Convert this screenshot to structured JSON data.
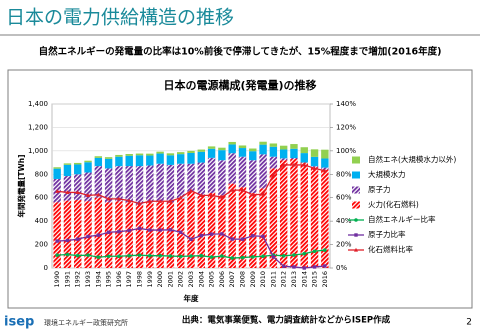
{
  "header": {
    "title": "日本の電力供給構造の推移",
    "subtitle": "自然エネルギーの発電量の比率は10%前後で停滞してきたが、15%程度まで増加(2016年度)"
  },
  "chart_data": {
    "type": "bar",
    "title": "日本の電源構成(発電量)の推移",
    "stacked": true,
    "x_label": "年度",
    "y_label": "年間発電量[TWh]",
    "categories": [
      "1990",
      "1991",
      "1992",
      "1993",
      "1994",
      "1995",
      "1996",
      "1997",
      "1998",
      "1999",
      "2000",
      "2001",
      "2002",
      "2003",
      "2004",
      "2005",
      "2006",
      "2007",
      "2008",
      "2009",
      "2010",
      "2011",
      "2012",
      "2013",
      "2014",
      "2015",
      "2016"
    ],
    "ylim": [
      0,
      1400
    ],
    "yticks": [
      0,
      200,
      400,
      600,
      800,
      {
        "value": 1000,
        "label": "1,000"
      },
      {
        "value": 1200,
        "label": "1,200"
      },
      {
        "value": 1400,
        "label": "1,400"
      }
    ],
    "y2lim": [
      0,
      140
    ],
    "y2ticks": [
      {
        "value": 0,
        "label": "0%"
      },
      {
        "value": 20,
        "label": "20%"
      },
      {
        "value": 40,
        "label": "40%"
      },
      {
        "value": 60,
        "label": "60%"
      },
      {
        "value": 80,
        "label": "80%"
      },
      {
        "value": 100,
        "label": "100%"
      },
      {
        "value": 120,
        "label": "120%"
      },
      {
        "value": 140,
        "label": "140%"
      }
    ],
    "grid": true,
    "legend": "right",
    "series": [
      {
        "name": "自然エネ(大規模水力以外)",
        "type": "bar",
        "fill_style": "solid",
        "color": "#92d050",
        "values": [
          12,
          12,
          13,
          13,
          14,
          14,
          15,
          15,
          15,
          16,
          16,
          17,
          17,
          18,
          19,
          20,
          21,
          21,
          22,
          23,
          25,
          28,
          32,
          40,
          50,
          64,
          75
        ]
      },
      {
        "name": "大規模水力",
        "type": "bar",
        "fill_style": "solid",
        "color": "#00b0f0",
        "values": [
          88,
          96,
          84,
          88,
          70,
          82,
          80,
          88,
          92,
          85,
          87,
          82,
          82,
          92,
          92,
          78,
          86,
          75,
          74,
          77,
          83,
          85,
          76,
          79,
          81,
          80,
          78
        ]
      },
      {
        "name": "原子力",
        "type": "bar",
        "fill_style": "hatch",
        "color": "#7030a0",
        "values": [
          200,
          210,
          220,
          245,
          270,
          290,
          300,
          310,
          330,
          315,
          320,
          320,
          300,
          240,
          280,
          300,
          300,
          260,
          260,
          280,
          290,
          100,
          16,
          9,
          0,
          9,
          17
        ]
      },
      {
        "name": "火力(化石燃料)",
        "type": "bar",
        "fill_style": "hatch",
        "color": "#ff0000",
        "values": [
          560,
          575,
          580,
          570,
          600,
          560,
          570,
          560,
          540,
          560,
          570,
          560,
          590,
          650,
          620,
          640,
          620,
          720,
          690,
          640,
          680,
          850,
          920,
          930,
          900,
          860,
          840
        ]
      },
      {
        "name": "自然エネルギー比率",
        "type": "line",
        "axis": "y2",
        "marker": "circle",
        "color": "#00b050",
        "values": [
          11,
          11.5,
          10.6,
          11,
          9.2,
          10,
          10,
          10.5,
          11,
          10.5,
          10.5,
          10.2,
          9.9,
          10.2,
          10.5,
          9.3,
          10.2,
          8.5,
          8.9,
          9.5,
          10,
          11,
          10.4,
          11.1,
          12.2,
          14.3,
          15.3
        ]
      },
      {
        "name": "原子力比率",
        "type": "line",
        "axis": "y2",
        "marker": "square",
        "color": "#7030a0",
        "values": [
          23,
          23.5,
          24.6,
          26.9,
          28,
          30.5,
          31,
          32,
          33.8,
          32.4,
          32.4,
          32.6,
          30.5,
          24.5,
          27.7,
          28.9,
          29.1,
          24.7,
          24.6,
          27.5,
          27,
          9.5,
          1.5,
          0.9,
          0,
          0.9,
          1.7
        ]
      },
      {
        "name": "化石燃料比率",
        "type": "line",
        "axis": "y2",
        "marker": "triangle",
        "color": "#e0202a",
        "values": [
          65.5,
          64.5,
          64.5,
          62,
          62.5,
          59,
          59,
          57.5,
          55,
          57,
          57,
          57,
          60,
          66,
          62,
          62,
          60.5,
          66.5,
          66.5,
          62.5,
          63,
          79.5,
          88,
          88,
          88,
          85,
          83
        ]
      }
    ]
  },
  "footer": {
    "logo": "isep",
    "organization": "環境エネルギー政策研究所",
    "source": "出典：電気事業便覧、電力調査統計などからISEP作成",
    "page_number": 2
  }
}
